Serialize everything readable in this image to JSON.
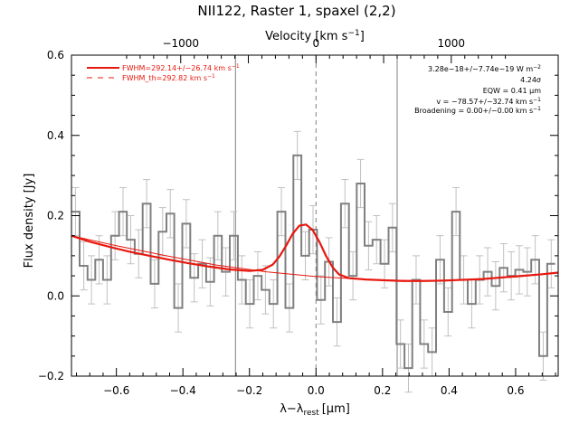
{
  "chart_data": {
    "type": "line",
    "title": "NII122, Raster 1, spaxel (2,2)",
    "xlabel": "λ−λ",
    "xlabel_sub": "rest",
    "xlabel_unit": "[μm]",
    "ylabel": "Flux density [Jy]",
    "top_xlabel": "Velocity [km s",
    "top_xlabel_sup": "−1",
    "top_xlabel_end": "]",
    "xlim": [
      -0.735,
      0.728
    ],
    "ylim": [
      -0.2,
      0.6
    ],
    "x_ticks": [
      -0.6,
      -0.4,
      -0.2,
      0.0,
      0.2,
      0.4,
      0.6
    ],
    "x_tick_labels": [
      "−0.6",
      "−0.4",
      "−0.2",
      "0.0",
      "0.2",
      "0.4",
      "0.6"
    ],
    "y_ticks": [
      -0.2,
      0.0,
      0.2,
      0.4,
      0.6
    ],
    "y_tick_labels": [
      "−0.2",
      "0.0",
      "0.2",
      "0.4",
      "0.6"
    ],
    "top_ticks_kms": [
      -1000,
      0,
      1000
    ],
    "top_tick_labels": [
      "−1000",
      "0",
      "1000"
    ],
    "top_axis_wavelength_um": 121.9,
    "vertical_lines_x": [
      -0.242,
      0.0,
      0.244
    ],
    "center_line_style": "dashed",
    "legend": [
      {
        "label": "FWHM=292.14+/−26.74 km s",
        "sup": "−1",
        "style": "solid",
        "color": "#e8180f"
      },
      {
        "label": "FWHM_th=292.82 km s",
        "sup": "−1",
        "style": "dashed",
        "color": "#e8180f"
      }
    ],
    "annotations": [
      {
        "text": "3.28e−18+/−7.74e−19 W m",
        "sup": "−2"
      },
      {
        "text": "4.24σ",
        "sup": ""
      },
      {
        "text": "EQW = 0.41 μm",
        "sup": ""
      },
      {
        "text": "v = −78.57+/−32.74 km s",
        "sup": "−1"
      },
      {
        "text": "Broadening = 0.00+/−0.00 km s",
        "sup": "−1"
      }
    ],
    "spectrum": {
      "name": "data",
      "color": "#808080",
      "x": [
        -0.723,
        -0.698,
        -0.675,
        -0.652,
        -0.628,
        -0.604,
        -0.58,
        -0.557,
        -0.533,
        -0.509,
        -0.485,
        -0.461,
        -0.438,
        -0.414,
        -0.39,
        -0.366,
        -0.342,
        -0.318,
        -0.295,
        -0.271,
        -0.247,
        -0.223,
        -0.199,
        -0.175,
        -0.152,
        -0.128,
        -0.104,
        -0.08,
        -0.056,
        -0.032,
        -0.009,
        0.015,
        0.039,
        0.063,
        0.087,
        0.111,
        0.134,
        0.158,
        0.182,
        0.206,
        0.23,
        0.254,
        0.278,
        0.301,
        0.325,
        0.349,
        0.373,
        0.397,
        0.421,
        0.444,
        0.468,
        0.492,
        0.516,
        0.54,
        0.564,
        0.587,
        0.611,
        0.635,
        0.659,
        0.683,
        0.707
      ],
      "y": [
        0.21,
        0.075,
        0.04,
        0.09,
        0.04,
        0.15,
        0.21,
        0.14,
        0.105,
        0.23,
        0.03,
        0.16,
        0.205,
        -0.03,
        0.18,
        0.045,
        0.08,
        0.035,
        0.15,
        0.06,
        0.15,
        0.04,
        -0.02,
        0.05,
        0.015,
        -0.02,
        0.21,
        -0.03,
        0.35,
        0.1,
        0.165,
        -0.01,
        0.085,
        -0.065,
        0.23,
        0.05,
        0.28,
        0.125,
        0.14,
        0.08,
        0.17,
        -0.12,
        -0.18,
        0.04,
        -0.12,
        -0.14,
        0.09,
        -0.04,
        0.21,
        0.04,
        -0.02,
        0.04,
        0.06,
        0.025,
        0.07,
        0.05,
        0.065,
        0.06,
        0.09,
        -0.15,
        0.08
      ],
      "err": 0.06
    },
    "fit": {
      "name": "fit",
      "color": "#e8180f",
      "x": [
        -0.735,
        -0.68,
        -0.62,
        -0.56,
        -0.5,
        -0.44,
        -0.38,
        -0.32,
        -0.26,
        -0.2,
        -0.16,
        -0.13,
        -0.11,
        -0.09,
        -0.07,
        -0.05,
        -0.03,
        -0.01,
        0.01,
        0.03,
        0.05,
        0.07,
        0.1,
        0.15,
        0.2,
        0.26,
        0.32,
        0.38,
        0.44,
        0.5,
        0.56,
        0.62,
        0.68,
        0.728
      ],
      "y": [
        0.15,
        0.135,
        0.122,
        0.11,
        0.1,
        0.09,
        0.081,
        0.073,
        0.066,
        0.062,
        0.065,
        0.078,
        0.098,
        0.125,
        0.155,
        0.175,
        0.178,
        0.164,
        0.135,
        0.1,
        0.071,
        0.053,
        0.044,
        0.041,
        0.039,
        0.037,
        0.037,
        0.038,
        0.04,
        0.042,
        0.046,
        0.05,
        0.054,
        0.058
      ]
    },
    "baseline": {
      "name": "baseline",
      "color": "#e8180f",
      "x": [
        -0.735,
        -0.6,
        -0.45,
        -0.3,
        -0.15,
        0.0,
        0.15,
        0.3,
        0.45,
        0.6,
        0.728
      ],
      "y": [
        0.15,
        0.125,
        0.1,
        0.077,
        0.06,
        0.048,
        0.041,
        0.038,
        0.04,
        0.047,
        0.058
      ]
    }
  }
}
